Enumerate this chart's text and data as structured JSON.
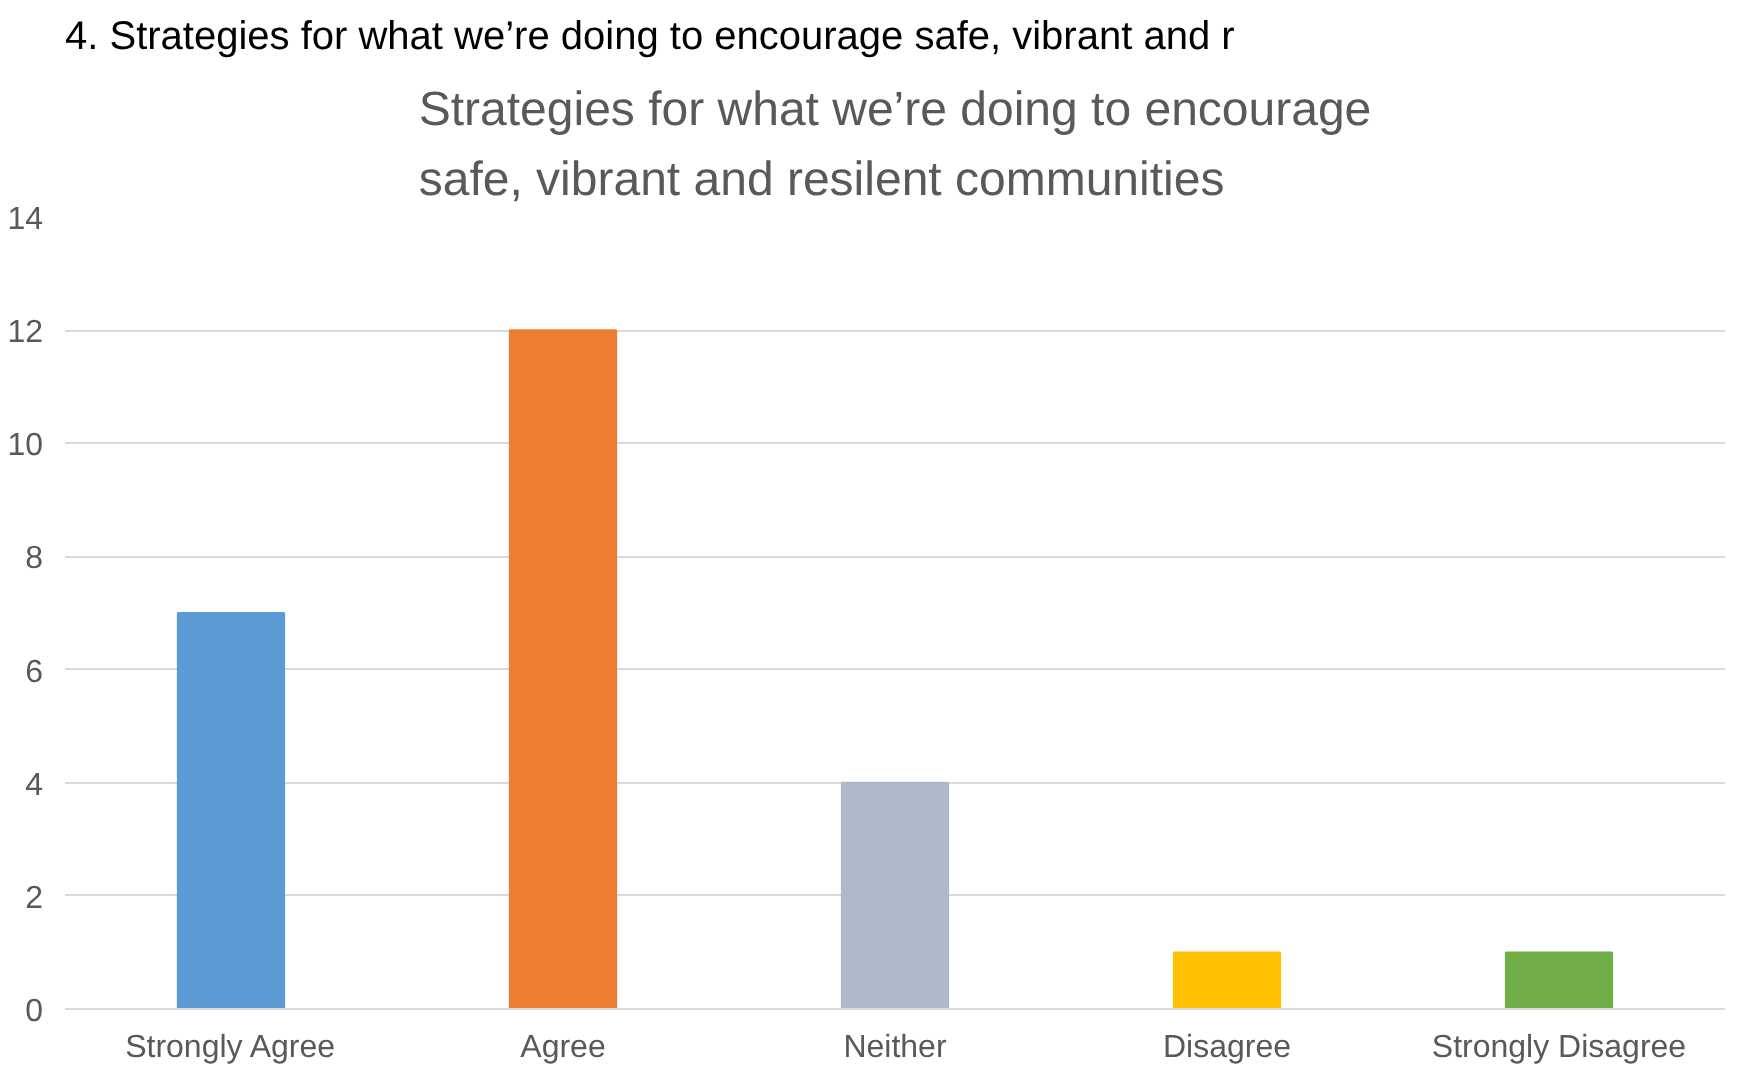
{
  "chart_data": {
    "type": "bar",
    "title": "Strategies for what we’re doing to encourage\nsafe, vibrant and resilent communities",
    "annotations": [
      "4. Strategies for what we’re doing to encourage safe, vibrant and r"
    ],
    "categories": [
      "Strongly Agree",
      "Agree",
      "Neither",
      "Disagree",
      "Strongly Disagree"
    ],
    "values": [
      7,
      12,
      4,
      1,
      1
    ],
    "colors": [
      "#5b9bd5",
      "#ed7d31",
      "#adb9ca",
      "#ffc000",
      "#70ad47"
    ],
    "ylim": [
      0,
      14
    ],
    "yticks": [
      0,
      2,
      4,
      6,
      8,
      10,
      12,
      14
    ],
    "grid": "y"
  }
}
